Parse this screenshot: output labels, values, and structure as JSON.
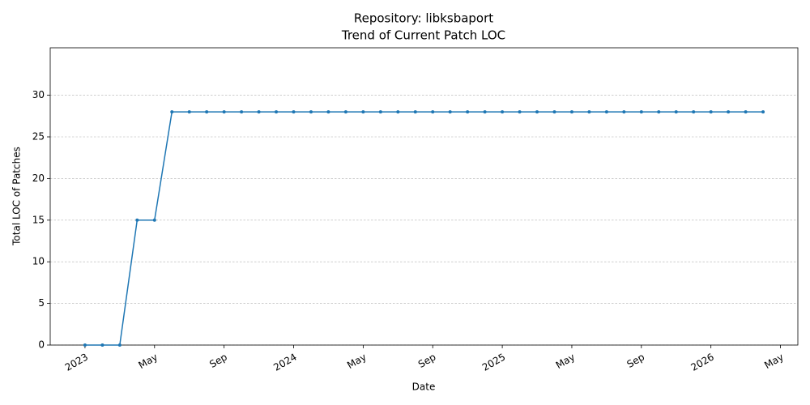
{
  "chart_data": {
    "type": "line",
    "title": "Repository: libksbaport",
    "subtitle": "Trend of Current Patch LOC",
    "x_label": "Date",
    "y_label": "Total LOC of Patches",
    "x": [
      "2023-01",
      "2023-02",
      "2023-03",
      "2023-04",
      "2023-05",
      "2023-06",
      "2023-07",
      "2023-08",
      "2023-09",
      "2023-10",
      "2023-11",
      "2023-12",
      "2024-01",
      "2024-02",
      "2024-03",
      "2024-04",
      "2024-05",
      "2024-06",
      "2024-07",
      "2024-08",
      "2024-09",
      "2024-10",
      "2024-11",
      "2024-12",
      "2025-01",
      "2025-02",
      "2025-03",
      "2025-04",
      "2025-05",
      "2025-06",
      "2025-07",
      "2025-08",
      "2025-09",
      "2025-10",
      "2025-11",
      "2025-12",
      "2026-01",
      "2026-02",
      "2026-03",
      "2026-04"
    ],
    "values": [
      0,
      0,
      0,
      15,
      15,
      28,
      28,
      28,
      28,
      28,
      28,
      28,
      28,
      28,
      28,
      28,
      28,
      28,
      28,
      28,
      28,
      28,
      28,
      28,
      28,
      28,
      28,
      28,
      28,
      28,
      28,
      28,
      28,
      28,
      28,
      28,
      28,
      28,
      28,
      28
    ],
    "color": "#1f77b4",
    "xlim": [
      "2022-11",
      "2026-06"
    ],
    "xticks": [
      {
        "value": "2023-01",
        "label": "2023"
      },
      {
        "value": "2023-05",
        "label": "May"
      },
      {
        "value": "2023-09",
        "label": "Sep"
      },
      {
        "value": "2024-01",
        "label": "2024"
      },
      {
        "value": "2024-05",
        "label": "May"
      },
      {
        "value": "2024-09",
        "label": "Sep"
      },
      {
        "value": "2025-01",
        "label": "2025"
      },
      {
        "value": "2025-05",
        "label": "May"
      },
      {
        "value": "2025-09",
        "label": "Sep"
      },
      {
        "value": "2026-01",
        "label": "2026"
      },
      {
        "value": "2026-05",
        "label": "May"
      }
    ],
    "ylim": [
      0,
      35.7
    ],
    "yticks": [
      0,
      5,
      10,
      15,
      20,
      25,
      30
    ],
    "grid": true
  }
}
